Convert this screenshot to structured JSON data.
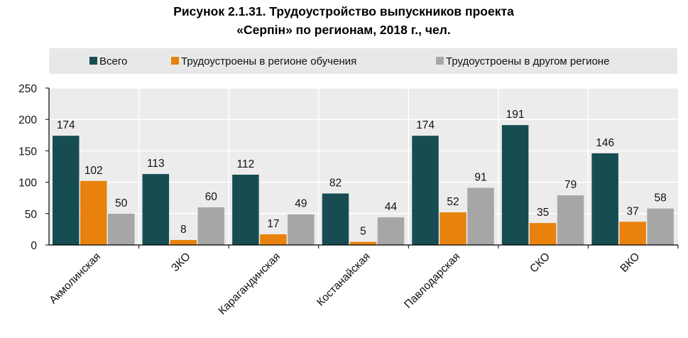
{
  "chart_data": {
    "type": "bar",
    "title": [
      "Рисунок 2.1.31. Трудоустройство выпускников проекта",
      "«Серпін» по регионам, 2018 г., чел."
    ],
    "categories": [
      "Акмолинская",
      "ЗКО",
      "Карагандинская",
      "Костанайская",
      "Павлодарская",
      "СКО",
      "ВКО"
    ],
    "series": [
      {
        "name": "Всего",
        "color": "#174d52",
        "values": [
          174,
          113,
          112,
          82,
          174,
          191,
          146
        ]
      },
      {
        "name": "Трудоустроены в регионе обучения",
        "color": "#e8820c",
        "values": [
          102,
          8,
          17,
          5,
          52,
          35,
          37
        ]
      },
      {
        "name": "Трудоустроены в другом регионе",
        "color": "#a6a6a6",
        "values": [
          50,
          60,
          49,
          44,
          91,
          79,
          58
        ]
      }
    ],
    "yticks": [
      "0",
      "50",
      "100",
      "150",
      "200",
      "250"
    ],
    "ylim": [
      0,
      250
    ],
    "xlabel": "",
    "ylabel": "",
    "grid": true,
    "legend": "top"
  }
}
